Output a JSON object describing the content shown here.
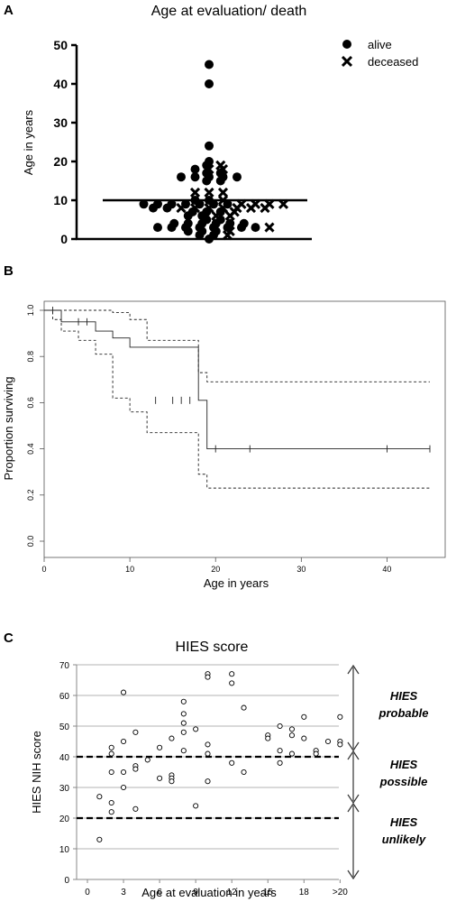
{
  "chart_data": [
    {
      "panel": "A",
      "type": "scatter",
      "title": "Age at evaluation/ death",
      "ylabel": "Age in years",
      "ylim": [
        0,
        50
      ],
      "yticks": [
        0,
        10,
        20,
        30,
        40,
        50
      ],
      "median": 10,
      "legend": [
        {
          "name": "alive",
          "marker": "dot"
        },
        {
          "name": "deceased",
          "marker": "cross"
        }
      ],
      "alive": [
        45,
        40,
        24,
        20,
        19,
        18,
        17,
        17,
        16,
        16,
        16,
        16,
        16,
        15,
        15,
        10,
        10,
        9,
        9,
        9,
        9,
        9,
        9,
        9,
        8,
        8,
        7,
        7,
        7,
        6,
        6,
        5,
        5,
        4,
        4,
        4,
        4,
        4,
        4,
        3,
        3,
        3,
        3,
        3,
        3,
        3,
        3,
        2,
        2,
        2,
        1,
        1,
        0
      ],
      "deceased": [
        19,
        18,
        18,
        12,
        12,
        12,
        10,
        9,
        9,
        9,
        9,
        8,
        8,
        8,
        8,
        8,
        8,
        8,
        7,
        6,
        6,
        3,
        2,
        1
      ]
    },
    {
      "panel": "B",
      "type": "line",
      "xlabel": "Age in years",
      "ylabel": "Proportion surviving",
      "xlim": [
        0,
        45
      ],
      "ylim": [
        0,
        1
      ],
      "xticks": [
        0,
        10,
        20,
        30,
        40
      ],
      "yticks": [
        "0.0",
        "0.2",
        "0.4",
        "0.6",
        "0.8",
        "1.0"
      ],
      "series": [
        {
          "role": "estimate",
          "style": "solid",
          "x": [
            0,
            1,
            2,
            4,
            6,
            8,
            10,
            18,
            19,
            45
          ],
          "y": [
            1.0,
            1.0,
            0.95,
            0.95,
            0.91,
            0.88,
            0.84,
            0.61,
            0.4,
            0.4
          ]
        },
        {
          "role": "upper",
          "style": "dashed",
          "x": [
            0,
            6,
            8,
            10,
            12,
            18,
            19,
            45
          ],
          "y": [
            1.0,
            1.0,
            0.99,
            0.96,
            0.87,
            0.73,
            0.69,
            0.69
          ]
        },
        {
          "role": "lower",
          "style": "dashed",
          "x": [
            0,
            1,
            2,
            4,
            6,
            8,
            10,
            12,
            18,
            19,
            45
          ],
          "y": [
            1.0,
            0.96,
            0.91,
            0.87,
            0.81,
            0.62,
            0.56,
            0.47,
            0.29,
            0.23,
            0.23
          ]
        }
      ],
      "censored": [
        {
          "x": 1,
          "y": 1.0
        },
        {
          "x": 4,
          "y": 0.95
        },
        {
          "x": 5,
          "y": 0.95
        },
        {
          "x": 13,
          "y": 0.61
        },
        {
          "x": 15,
          "y": 0.61
        },
        {
          "x": 16,
          "y": 0.61
        },
        {
          "x": 17,
          "y": 0.61
        },
        {
          "x": 20,
          "y": 0.4
        },
        {
          "x": 24,
          "y": 0.4
        },
        {
          "x": 40,
          "y": 0.4
        },
        {
          "x": 45,
          "y": 0.4
        }
      ]
    },
    {
      "panel": "C",
      "type": "scatter",
      "title": "HIES score",
      "xlabel": "Age at evaluation in years",
      "ylabel": "HIES NIH score",
      "ylim": [
        0,
        70
      ],
      "yticks": [
        0,
        10,
        20,
        30,
        40,
        50,
        60,
        70
      ],
      "xticks": [
        "0",
        "3",
        "6",
        "9",
        "12",
        "15",
        "18",
        ">20"
      ],
      "xtick_values": [
        0,
        3,
        6,
        9,
        12,
        15,
        18,
        21
      ],
      "thresholds": [
        40,
        20
      ],
      "zones": [
        {
          "line1": "HIES",
          "line2": "probable"
        },
        {
          "line1": "HIES",
          "line2": "possible"
        },
        {
          "line1": "HIES",
          "line2": "unlikely"
        }
      ],
      "points": [
        {
          "x": 1,
          "y": 27
        },
        {
          "x": 1,
          "y": 13
        },
        {
          "x": 2,
          "y": 43
        },
        {
          "x": 2,
          "y": 41
        },
        {
          "x": 2,
          "y": 35
        },
        {
          "x": 2,
          "y": 25
        },
        {
          "x": 2,
          "y": 22
        },
        {
          "x": 3,
          "y": 61
        },
        {
          "x": 3,
          "y": 45
        },
        {
          "x": 3,
          "y": 35
        },
        {
          "x": 3,
          "y": 30
        },
        {
          "x": 4,
          "y": 48
        },
        {
          "x": 4,
          "y": 37
        },
        {
          "x": 4,
          "y": 36
        },
        {
          "x": 4,
          "y": 23
        },
        {
          "x": 5,
          "y": 39
        },
        {
          "x": 6,
          "y": 43
        },
        {
          "x": 6,
          "y": 33
        },
        {
          "x": 7,
          "y": 46
        },
        {
          "x": 7,
          "y": 34
        },
        {
          "x": 7,
          "y": 33
        },
        {
          "x": 7,
          "y": 32
        },
        {
          "x": 8,
          "y": 58
        },
        {
          "x": 8,
          "y": 54
        },
        {
          "x": 8,
          "y": 51
        },
        {
          "x": 8,
          "y": 48
        },
        {
          "x": 8,
          "y": 42
        },
        {
          "x": 9,
          "y": 49
        },
        {
          "x": 9,
          "y": 24
        },
        {
          "x": 10,
          "y": 67
        },
        {
          "x": 10,
          "y": 66
        },
        {
          "x": 10,
          "y": 44
        },
        {
          "x": 10,
          "y": 41
        },
        {
          "x": 10,
          "y": 32
        },
        {
          "x": 12,
          "y": 67
        },
        {
          "x": 12,
          "y": 64
        },
        {
          "x": 12,
          "y": 38
        },
        {
          "x": 13,
          "y": 56
        },
        {
          "x": 13,
          "y": 35
        },
        {
          "x": 15,
          "y": 47
        },
        {
          "x": 15,
          "y": 46
        },
        {
          "x": 16,
          "y": 50
        },
        {
          "x": 16,
          "y": 42
        },
        {
          "x": 16,
          "y": 38
        },
        {
          "x": 17,
          "y": 49
        },
        {
          "x": 17,
          "y": 47
        },
        {
          "x": 17,
          "y": 41
        },
        {
          "x": 18,
          "y": 53
        },
        {
          "x": 18,
          "y": 46
        },
        {
          "x": 19,
          "y": 42
        },
        {
          "x": 19,
          "y": 41
        },
        {
          "x": 20,
          "y": 45
        },
        {
          "x": 21,
          "y": 53
        },
        {
          "x": 21,
          "y": 45
        },
        {
          "x": 21,
          "y": 44
        }
      ]
    }
  ]
}
